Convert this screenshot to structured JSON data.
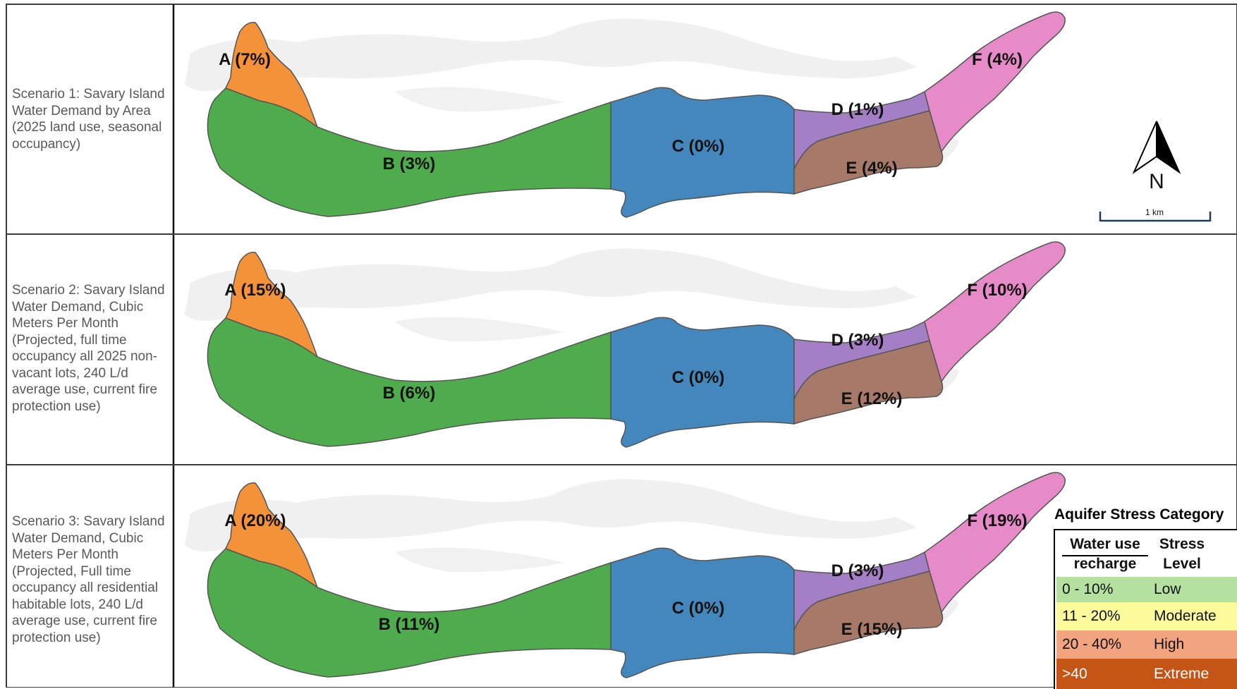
{
  "scenarios": [
    {
      "description": "Scenario 1: Savary Island Water Demand by Area (2025 land use, seasonal occupancy)",
      "zones": {
        "A": "A (7%)",
        "B": "B (3%)",
        "C": "C (0%)",
        "D": "D (1%)",
        "E": "E (4%)",
        "F": "F (4%)"
      }
    },
    {
      "description": "Scenario 2: Savary Island Water Demand, Cubic Meters Per Month (Projected, full time occupancy all 2025 non-vacant lots, 240 L/d average use, current fire protection use)",
      "zones": {
        "A": "A (15%)",
        "B": "B (6%)",
        "C": "C (0%)",
        "D": "D (3%)",
        "E": "E (12%)",
        "F": "F (10%)"
      }
    },
    {
      "description": "Scenario 3: Savary Island Water Demand, Cubic Meters Per Month (Projected, Full time occupancy all residential habitable lots, 240 L/d average use, current fire protection use)",
      "zones": {
        "A": "A (20%)",
        "B": "B (11%)",
        "C": "C (0%)",
        "D": "D (3%)",
        "E": "E (15%)",
        "F": "F (19%)"
      }
    }
  ],
  "zone_colors": {
    "A": "#f4923a",
    "B": "#4fac4c",
    "C": "#4387bd",
    "D": "#a47fc6",
    "E": "#a67968",
    "F": "#e68bc8"
  },
  "north_arrow": {
    "label": "N",
    "icon": "north-arrow-icon"
  },
  "scale_bar": {
    "label": "1 km"
  },
  "legend": {
    "title": "Aquifer  Stress Category",
    "col1_header_line1": "Water use",
    "col1_header_line2": "recharge",
    "col2_header_line1": "Stress",
    "col2_header_line2": "Level",
    "rows": [
      {
        "range": "0 - 10%",
        "level": "Low",
        "color": "#b4e0a0"
      },
      {
        "range": "11 - 20%",
        "level": "Moderate",
        "color": "#fbfb9c"
      },
      {
        "range": "20 - 40%",
        "level": "High",
        "color": "#f2a37f"
      },
      {
        "range": ">40",
        "level": "Extreme",
        "color": "#c55417"
      }
    ]
  }
}
